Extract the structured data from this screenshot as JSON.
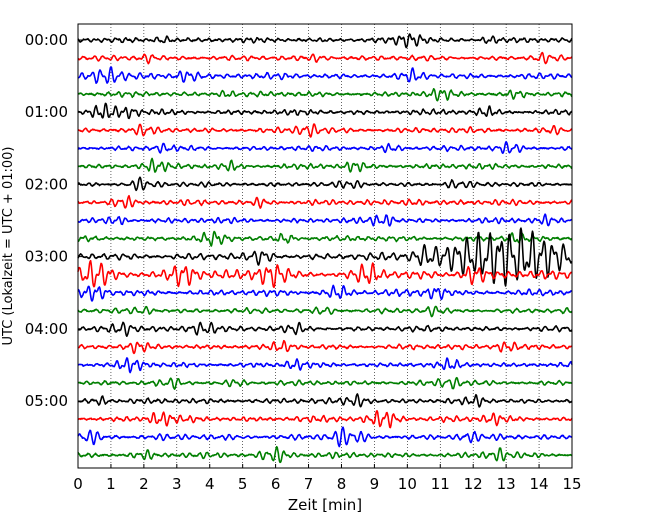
{
  "chart_data": {
    "type": "line",
    "title": "",
    "xlabel": "Zeit  [min]",
    "ylabel": "UTC (Lokalzeit = UTC + 01:00)",
    "xlim": [
      0,
      15
    ],
    "x_ticks": [
      "0",
      "1",
      "2",
      "3",
      "4",
      "5",
      "6",
      "7",
      "8",
      "9",
      "10",
      "11",
      "12",
      "13",
      "14",
      "15"
    ],
    "y_tick_labels": [
      "00:00",
      "01:00",
      "02:00",
      "03:00",
      "04:00",
      "05:00"
    ],
    "trace_interval_min": 15,
    "trace_count": 24,
    "trace_colors": [
      "#000000",
      "#ff0000",
      "#0000ff",
      "#007f00"
    ],
    "grid": "vertical dotted lines at each minute",
    "legend": "none",
    "series": [
      {
        "start": "00:00",
        "color": "#000000",
        "amplitude": 0.2,
        "bursts": [
          [
            2.6,
            0.3
          ],
          [
            10.1,
            0.5
          ],
          [
            12.5,
            0.3
          ]
        ]
      },
      {
        "start": "00:15",
        "color": "#ff0000",
        "amplitude": 0.2,
        "bursts": [
          [
            2.1,
            0.3
          ],
          [
            7.3,
            0.3
          ],
          [
            14.1,
            0.3
          ]
        ]
      },
      {
        "start": "00:30",
        "color": "#0000ff",
        "amplitude": 0.25,
        "bursts": [
          [
            0.9,
            0.5
          ],
          [
            3.3,
            0.4
          ],
          [
            10.2,
            0.3
          ]
        ]
      },
      {
        "start": "00:45",
        "color": "#007f00",
        "amplitude": 0.2,
        "bursts": [
          [
            4.5,
            0.3
          ],
          [
            11.0,
            0.4
          ],
          [
            13.3,
            0.3
          ]
        ]
      },
      {
        "start": "01:00",
        "color": "#000000",
        "amplitude": 0.22,
        "bursts": [
          [
            0.8,
            0.5
          ],
          [
            1.6,
            0.3
          ],
          [
            12.4,
            0.3
          ]
        ]
      },
      {
        "start": "01:15",
        "color": "#ff0000",
        "amplitude": 0.22,
        "bursts": [
          [
            2.0,
            0.3
          ],
          [
            7.0,
            0.4
          ],
          [
            14.4,
            0.3
          ]
        ]
      },
      {
        "start": "01:30",
        "color": "#0000ff",
        "amplitude": 0.2,
        "bursts": [
          [
            2.6,
            0.3
          ],
          [
            9.5,
            0.3
          ],
          [
            13.1,
            0.4
          ]
        ]
      },
      {
        "start": "01:45",
        "color": "#007f00",
        "amplitude": 0.22,
        "bursts": [
          [
            2.3,
            0.4
          ],
          [
            4.6,
            0.3
          ],
          [
            8.4,
            0.3
          ]
        ]
      },
      {
        "start": "02:00",
        "color": "#000000",
        "amplitude": 0.2,
        "bursts": [
          [
            1.9,
            0.4
          ],
          [
            8.3,
            0.3
          ],
          [
            11.5,
            0.3
          ]
        ]
      },
      {
        "start": "02:15",
        "color": "#ff0000",
        "amplitude": 0.22,
        "bursts": [
          [
            1.4,
            0.4
          ],
          [
            5.6,
            0.3
          ],
          [
            10.2,
            0.3
          ]
        ]
      },
      {
        "start": "02:30",
        "color": "#0000ff",
        "amplitude": 0.22,
        "bursts": [
          [
            1.2,
            0.3
          ],
          [
            9.3,
            0.4
          ],
          [
            14.2,
            0.3
          ]
        ]
      },
      {
        "start": "02:45",
        "color": "#007f00",
        "amplitude": 0.22,
        "bursts": [
          [
            4.1,
            0.4
          ],
          [
            6.3,
            0.3
          ],
          [
            13.3,
            0.3
          ]
        ]
      },
      {
        "start": "03:00",
        "color": "#000000",
        "amplitude": 0.3,
        "bursts": [
          [
            12.2,
            1.3
          ],
          [
            13.8,
            1.3
          ],
          [
            10.5,
            0.4
          ],
          [
            5.6,
            0.3
          ]
        ]
      },
      {
        "start": "03:15",
        "color": "#ff0000",
        "amplitude": 0.35,
        "bursts": [
          [
            0.5,
            0.5
          ],
          [
            3.2,
            0.5
          ],
          [
            5.9,
            0.5
          ],
          [
            8.8,
            0.4
          ],
          [
            12.0,
            0.4
          ]
        ]
      },
      {
        "start": "03:30",
        "color": "#0000ff",
        "amplitude": 0.25,
        "bursts": [
          [
            0.5,
            0.4
          ],
          [
            7.9,
            0.4
          ],
          [
            10.9,
            0.4
          ]
        ]
      },
      {
        "start": "03:45",
        "color": "#007f00",
        "amplitude": 0.2,
        "bursts": [
          [
            2.0,
            0.3
          ],
          [
            7.5,
            0.3
          ],
          [
            10.8,
            0.3
          ]
        ]
      },
      {
        "start": "04:00",
        "color": "#000000",
        "amplitude": 0.22,
        "bursts": [
          [
            1.4,
            0.4
          ],
          [
            3.8,
            0.5
          ],
          [
            6.6,
            0.3
          ]
        ]
      },
      {
        "start": "04:15",
        "color": "#ff0000",
        "amplitude": 0.22,
        "bursts": [
          [
            1.8,
            0.3
          ],
          [
            6.2,
            0.3
          ],
          [
            13.0,
            0.4
          ]
        ]
      },
      {
        "start": "04:30",
        "color": "#0000ff",
        "amplitude": 0.22,
        "bursts": [
          [
            1.6,
            0.4
          ],
          [
            6.6,
            0.3
          ],
          [
            11.3,
            0.3
          ]
        ]
      },
      {
        "start": "04:45",
        "color": "#007f00",
        "amplitude": 0.2,
        "bursts": [
          [
            2.9,
            0.3
          ],
          [
            4.8,
            0.3
          ],
          [
            11.3,
            0.4
          ]
        ]
      },
      {
        "start": "05:00",
        "color": "#000000",
        "amplitude": 0.22,
        "bursts": [
          [
            0.7,
            0.3
          ],
          [
            8.5,
            0.4
          ],
          [
            12.1,
            0.3
          ]
        ]
      },
      {
        "start": "05:15",
        "color": "#ff0000",
        "amplitude": 0.25,
        "bursts": [
          [
            2.5,
            0.4
          ],
          [
            9.3,
            0.5
          ],
          [
            12.6,
            0.3
          ]
        ]
      },
      {
        "start": "05:30",
        "color": "#0000ff",
        "amplitude": 0.25,
        "bursts": [
          [
            0.3,
            0.4
          ],
          [
            8.1,
            0.5
          ],
          [
            11.8,
            0.3
          ]
        ]
      },
      {
        "start": "05:45",
        "color": "#007f00",
        "amplitude": 0.22,
        "bursts": [
          [
            2.0,
            0.3
          ],
          [
            6.0,
            0.5
          ],
          [
            12.8,
            0.4
          ]
        ]
      }
    ]
  }
}
